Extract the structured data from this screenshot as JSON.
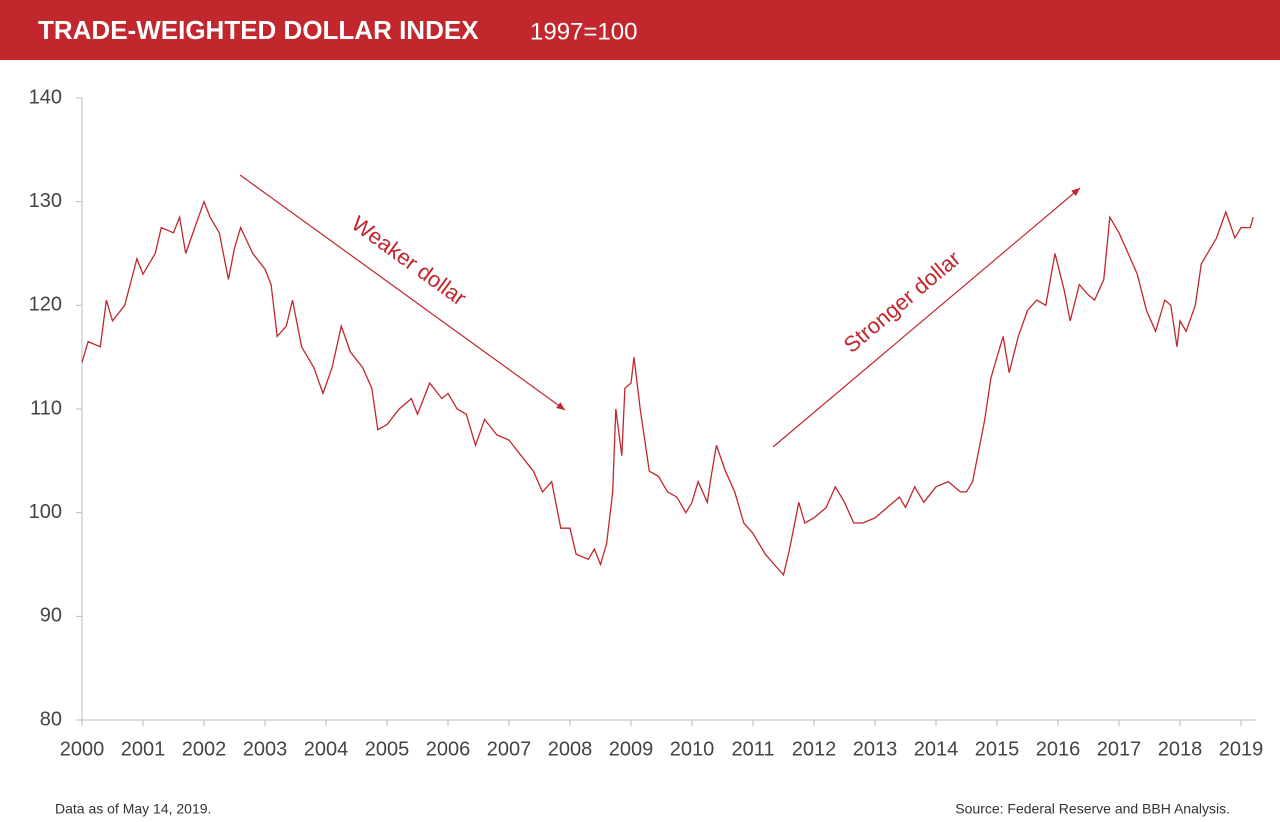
{
  "chart_data": {
    "type": "line",
    "title": "TRADE-WEIGHTED DOLLAR INDEX",
    "subtitle": "1997=100",
    "annotations": [
      "Weaker dollar",
      "Stronger dollar"
    ],
    "footnote": "Data as of May 14, 2019.",
    "source": "Source: Federal Reserve and BBH Analysis.",
    "x": [
      2000.0,
      2000.1,
      2000.3,
      2000.4,
      2000.5,
      2000.7,
      2000.9,
      2001.0,
      2001.2,
      2001.3,
      2001.5,
      2001.6,
      2001.7,
      2001.85,
      2002.0,
      2002.1,
      2002.25,
      2002.4,
      2002.5,
      2002.6,
      2002.8,
      2003.0,
      2003.1,
      2003.2,
      2003.35,
      2003.45,
      2003.6,
      2003.8,
      2003.95,
      2004.1,
      2004.25,
      2004.4,
      2004.6,
      2004.75,
      2004.85,
      2005.0,
      2005.2,
      2005.4,
      2005.5,
      2005.7,
      2005.9,
      2006.0,
      2006.15,
      2006.3,
      2006.45,
      2006.6,
      2006.8,
      2007.0,
      2007.2,
      2007.4,
      2007.55,
      2007.7,
      2007.85,
      2008.0,
      2008.1,
      2008.3,
      2008.4,
      2008.5,
      2008.6,
      2008.7,
      2008.75,
      2008.85,
      2008.9,
      2009.0,
      2009.05,
      2009.15,
      2009.3,
      2009.45,
      2009.6,
      2009.75,
      2009.9,
      2010.0,
      2010.1,
      2010.25,
      2010.3,
      2010.4,
      2010.55,
      2010.7,
      2010.85,
      2011.0,
      2011.2,
      2011.35,
      2011.5,
      2011.6,
      2011.75,
      2011.85,
      2012.0,
      2012.2,
      2012.35,
      2012.5,
      2012.65,
      2012.8,
      2013.0,
      2013.2,
      2013.4,
      2013.5,
      2013.65,
      2013.8,
      2014.0,
      2014.2,
      2014.4,
      2014.5,
      2014.6,
      2014.7,
      2014.8,
      2014.9,
      2015.0,
      2015.1,
      2015.2,
      2015.35,
      2015.5,
      2015.65,
      2015.8,
      2015.95,
      2016.1,
      2016.2,
      2016.35,
      2016.5,
      2016.6,
      2016.75,
      2016.85,
      2017.0,
      2017.15,
      2017.3,
      2017.45,
      2017.6,
      2017.75,
      2017.85,
      2017.95,
      2018.0,
      2018.1,
      2018.25,
      2018.35,
      2018.5,
      2018.6,
      2018.75,
      2018.9,
      2019.0,
      2019.15,
      2019.2
    ],
    "series": [
      {
        "name": "Trade-weighted dollar index",
        "color": "#c1272d",
        "values": [
          114.5,
          116.5,
          116,
          120.5,
          118.5,
          120,
          124.5,
          123,
          125,
          127.5,
          127,
          128.5,
          125,
          127.5,
          130,
          128.5,
          127,
          122.5,
          125.5,
          127.5,
          125,
          123.5,
          122,
          117,
          118,
          120.5,
          116,
          114,
          111.5,
          114,
          118,
          115.5,
          114,
          112,
          108,
          108.5,
          110,
          111,
          109.5,
          112.5,
          111,
          111.5,
          110,
          109.5,
          106.5,
          109,
          107.5,
          107,
          105.5,
          104,
          102,
          103,
          98.5,
          98.5,
          96,
          95.5,
          96.5,
          95,
          97,
          102,
          110,
          105.5,
          112,
          112.5,
          115,
          110,
          104,
          103.5,
          102,
          101.5,
          100,
          101,
          103,
          101,
          103,
          106.5,
          104,
          102,
          99,
          98,
          96,
          95,
          94,
          96.5,
          101,
          99,
          99.5,
          100.5,
          102.5,
          101,
          99,
          99,
          99.5,
          100.5,
          101.5,
          100.5,
          102.5,
          101,
          102.5,
          103,
          102,
          102,
          103,
          106,
          109,
          113,
          115,
          117,
          113.5,
          117,
          119.5,
          120.5,
          120,
          125,
          121.5,
          118.5,
          122,
          121,
          120.5,
          122.5,
          128.5,
          127,
          125,
          123,
          119.5,
          117.5,
          120.5,
          120,
          116,
          118.5,
          117.5,
          120,
          124,
          125.5,
          126.5,
          129,
          126.5,
          127.5,
          127.5,
          128.5
        ]
      }
    ],
    "xlim": [
      2000,
      2019.23
    ],
    "xticks": [
      2000,
      2001,
      2002,
      2003,
      2004,
      2005,
      2006,
      2007,
      2008,
      2009,
      2010,
      2011,
      2012,
      2013,
      2014,
      2015,
      2016,
      2017,
      2018,
      2019
    ],
    "ylim": [
      80,
      140
    ],
    "yticks": [
      80,
      90,
      100,
      110,
      120,
      130,
      140
    ],
    "grid": false
  }
}
